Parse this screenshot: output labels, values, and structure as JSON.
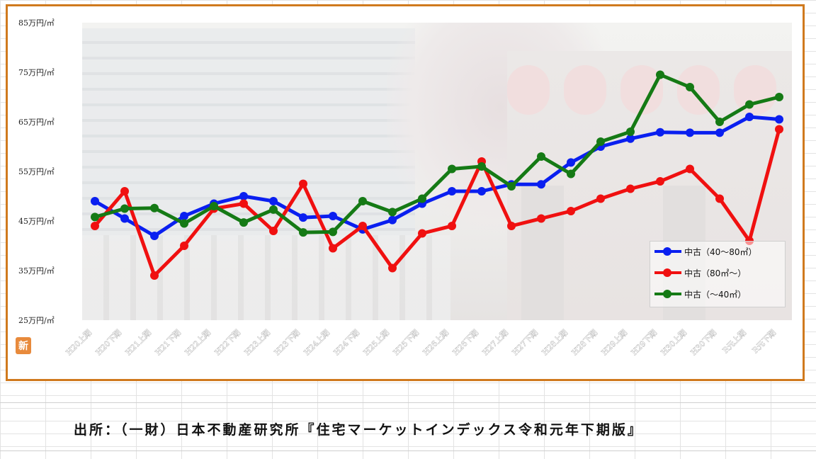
{
  "chart_data": {
    "type": "line",
    "title": "",
    "xlabel": "",
    "ylabel": "",
    "ylim": [
      25,
      85
    ],
    "y_ticks": [
      "25万円/㎡",
      "35万円/㎡",
      "45万円/㎡",
      "55万円/㎡",
      "65万円/㎡",
      "75万円/㎡",
      "85万円/㎡"
    ],
    "categories": [
      "H20上期",
      "H20下期",
      "H21上期",
      "H21下期",
      "H22上期",
      "H22下期",
      "H23上期",
      "H23下期",
      "H24上期",
      "H24下期",
      "H25上期",
      "H25下期",
      "H26上期",
      "H26下期",
      "H27上期",
      "H27下期",
      "H28上期",
      "H28下期",
      "H29上期",
      "H29下期",
      "H30上期",
      "H30下期",
      "R元上期",
      "R元下期"
    ],
    "series": [
      {
        "name": "中古（40～80㎡）",
        "color": "#0a1ff0",
        "values": [
          49.0,
          45.5,
          42.0,
          46.0,
          48.5,
          50.0,
          49.0,
          45.7,
          46.0,
          43.3,
          45.2,
          48.5,
          51.0,
          51.0,
          52.4,
          52.4,
          56.8,
          60.0,
          61.6,
          62.9,
          62.8,
          62.8,
          66.0,
          65.5
        ]
      },
      {
        "name": "中古（80㎡～）",
        "color": "#f01010",
        "values": [
          44.0,
          51.0,
          34.0,
          40.0,
          47.5,
          48.5,
          43.0,
          52.5,
          39.5,
          44.0,
          35.5,
          42.5,
          44.0,
          57.0,
          44.0,
          45.5,
          47.0,
          49.5,
          51.5,
          53.0,
          55.5,
          49.5,
          41.0,
          63.5
        ]
      },
      {
        "name": "中古（～40㎡）",
        "color": "#157a15",
        "values": [
          45.8,
          47.5,
          47.6,
          44.5,
          48.0,
          44.7,
          47.3,
          42.7,
          42.8,
          49.0,
          46.8,
          49.5,
          55.5,
          56.0,
          52.0,
          58.0,
          54.5,
          61.0,
          63.0,
          74.5,
          72.0,
          65.0,
          68.5,
          70.0
        ]
      }
    ],
    "grid": false,
    "legend_position": "bottom-right"
  },
  "logo_text": "新",
  "source_note": "出所：（一財）日本不動産研究所『住宅マーケットインデックス令和元年下期版』"
}
